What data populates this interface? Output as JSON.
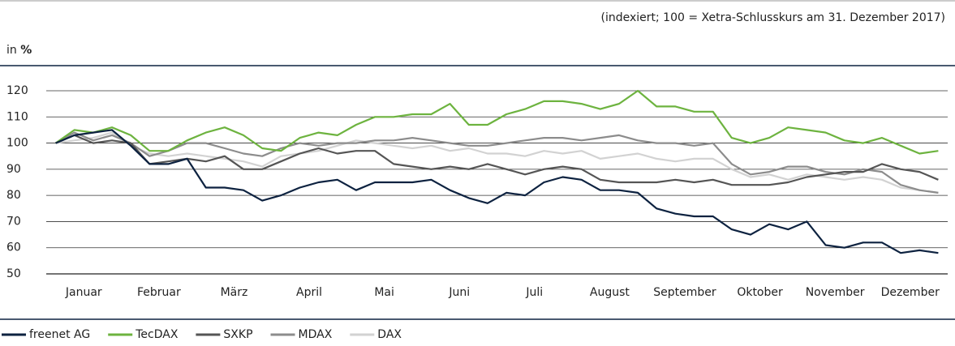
{
  "chart_data": {
    "type": "line",
    "subtitle": "(indexiert; 100 = Xetra-Schlusskurs am 31. Dezember 2017)",
    "ylabel": "in",
    "ylabel_unit": "%",
    "categories": [
      null,
      null,
      "Januar",
      null,
      null,
      null,
      "Februar",
      null,
      null,
      null,
      "März",
      null,
      null,
      null,
      "April",
      null,
      null,
      null,
      "Mai",
      null,
      null,
      null,
      "Juni",
      null,
      null,
      null,
      "Juli",
      null,
      null,
      null,
      "August",
      null,
      null,
      null,
      "September",
      null,
      null,
      null,
      "Oktober",
      null,
      null,
      null,
      "November",
      null,
      null,
      null,
      "Dezember",
      null
    ],
    "ylim": [
      50,
      130
    ],
    "yticks": [
      50,
      60,
      70,
      80,
      90,
      100,
      110,
      120
    ],
    "grid": true,
    "series": [
      {
        "name": "freenet AG",
        "color": "#0d2240",
        "values": [
          100,
          103,
          104,
          105,
          99,
          92,
          92,
          94,
          83,
          83,
          82,
          78,
          80,
          83,
          85,
          86,
          82,
          85,
          85,
          85,
          86,
          82,
          79,
          77,
          81,
          80,
          85,
          87,
          86,
          82,
          82,
          81,
          75,
          73,
          72,
          72,
          67,
          65,
          69,
          67,
          70,
          61,
          60,
          62,
          62,
          58,
          59,
          58
        ]
      },
      {
        "name": "TecDAX",
        "color": "#6db33f",
        "values": [
          100,
          105,
          104,
          106,
          103,
          97,
          97,
          101,
          104,
          106,
          103,
          98,
          97,
          102,
          104,
          103,
          107,
          110,
          110,
          111,
          111,
          115,
          107,
          107,
          111,
          113,
          116,
          116,
          115,
          113,
          115,
          120,
          114,
          114,
          112,
          112,
          102,
          100,
          102,
          106,
          105,
          104,
          101,
          100,
          102,
          99,
          96,
          97
        ]
      },
      {
        "name": "SXKP",
        "color": "#555555",
        "values": [
          100,
          103,
          100,
          101,
          100,
          92,
          93,
          94,
          93,
          95,
          90,
          90,
          93,
          96,
          98,
          96,
          97,
          97,
          92,
          91,
          90,
          91,
          90,
          92,
          90,
          88,
          90,
          91,
          90,
          86,
          85,
          85,
          85,
          86,
          85,
          86,
          84,
          84,
          84,
          85,
          87,
          88,
          89,
          89,
          92,
          90,
          89,
          86
        ]
      },
      {
        "name": "MDAX",
        "color": "#8c8c8c",
        "values": [
          100,
          104,
          101,
          103,
          100,
          95,
          97,
          100,
          100,
          98,
          96,
          95,
          98,
          100,
          99,
          100,
          100,
          101,
          101,
          102,
          101,
          100,
          99,
          99,
          100,
          101,
          102,
          102,
          101,
          102,
          103,
          101,
          100,
          100,
          99,
          100,
          92,
          88,
          89,
          91,
          91,
          89,
          88,
          90,
          89,
          84,
          82,
          81
        ]
      },
      {
        "name": "DAX",
        "color": "#d2d2d2",
        "values": [
          100,
          101,
          102,
          104,
          99,
          96,
          95,
          96,
          95,
          94,
          93,
          91,
          95,
          96,
          97,
          99,
          101,
          100,
          99,
          98,
          99,
          97,
          98,
          96,
          96,
          95,
          97,
          96,
          97,
          94,
          95,
          96,
          94,
          93,
          94,
          94,
          90,
          87,
          88,
          86,
          88,
          87,
          86,
          87,
          86,
          83,
          82,
          81
        ]
      }
    ]
  }
}
